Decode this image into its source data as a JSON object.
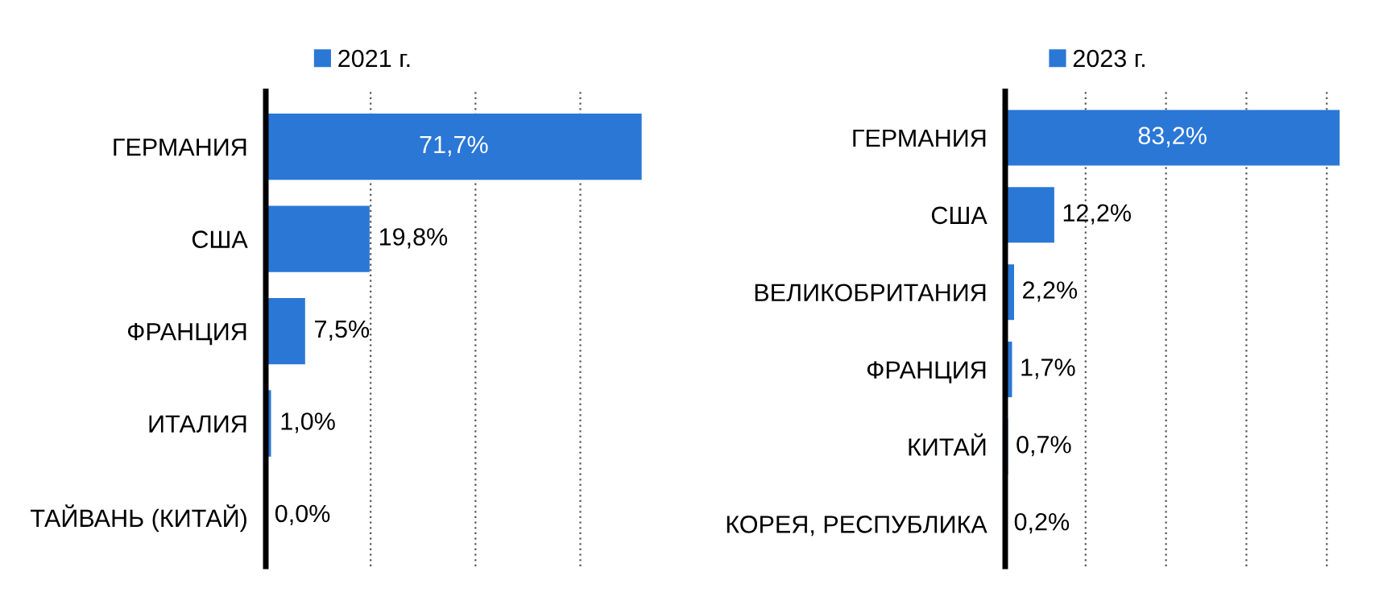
{
  "chart_data": [
    {
      "type": "bar",
      "orientation": "horizontal",
      "categories": [
        "ГЕРМАНИЯ",
        "США",
        "ФРАНЦИЯ",
        "ИТАЛИЯ",
        "ТАЙВАНЬ (КИТАЙ)"
      ],
      "series": [
        {
          "name": "2021 г.",
          "color": "#2a77d6",
          "values": [
            71.7,
            19.8,
            7.5,
            1.0,
            0.0
          ],
          "value_labels": [
            "71,7%",
            "19,8%",
            "7,5%",
            "1,0%",
            "0,0%"
          ]
        }
      ],
      "grid": "x",
      "legend": "top",
      "tick_labels": "y"
    },
    {
      "type": "bar",
      "orientation": "horizontal",
      "categories": [
        "ГЕРМАНИЯ",
        "США",
        "ВЕЛИКОБРИТАНИЯ",
        "ФРАНЦИЯ",
        "КИТАЙ",
        "КОРЕЯ, РЕСПУБЛИКА"
      ],
      "series": [
        {
          "name": "2023 г.",
          "color": "#2a77d6",
          "values": [
            83.2,
            12.2,
            2.2,
            1.7,
            0.7,
            0.2
          ],
          "value_labels": [
            "83,2%",
            "12,2%",
            "2,2%",
            "1,7%",
            "0,7%",
            "0,2%"
          ]
        }
      ],
      "grid": "x",
      "legend": "top",
      "tick_labels": "y"
    }
  ]
}
